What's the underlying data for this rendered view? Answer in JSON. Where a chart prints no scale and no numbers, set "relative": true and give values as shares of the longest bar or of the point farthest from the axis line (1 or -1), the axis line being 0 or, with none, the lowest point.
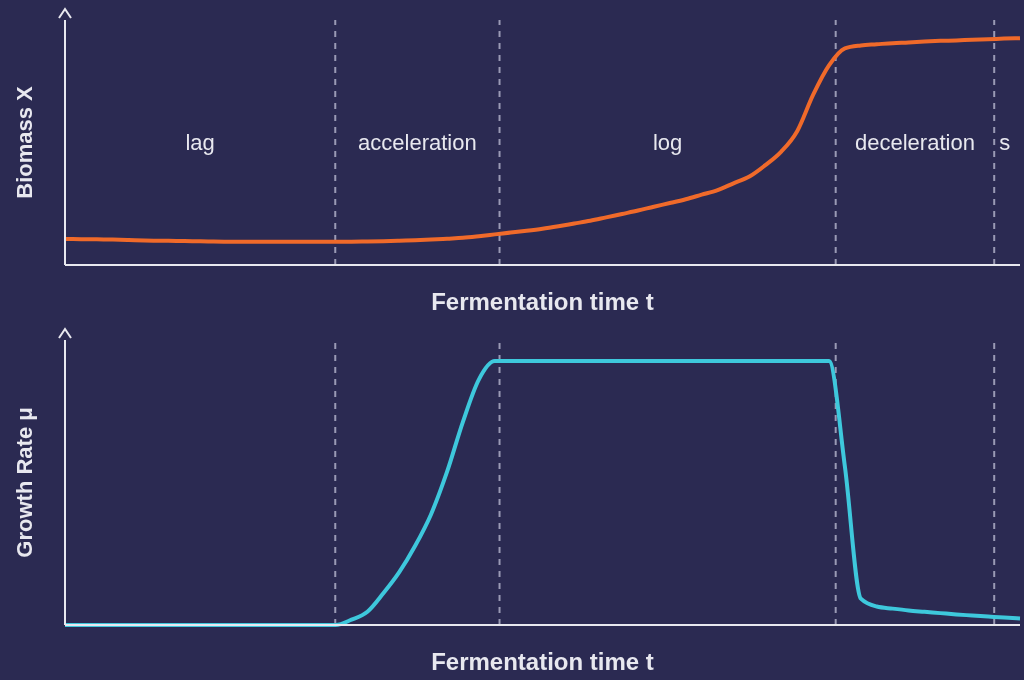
{
  "chart_data": [
    {
      "type": "line",
      "relative": true,
      "ylabel": "Biomass X",
      "xlabel": "Fermentation time t",
      "color": "#f06a2a",
      "categories": [
        null,
        null,
        null,
        null,
        null,
        null,
        null,
        null,
        null,
        null,
        null,
        null,
        null,
        null,
        null,
        null,
        null,
        null,
        null,
        null,
        null,
        null,
        null,
        null,
        null,
        null,
        null,
        null,
        null,
        null,
        null,
        null,
        null,
        null,
        null,
        null,
        null,
        null,
        null,
        null,
        null,
        null,
        null,
        null,
        null,
        null,
        null,
        null,
        null,
        null,
        null,
        null,
        null,
        null,
        null,
        null,
        null,
        null,
        null,
        null,
        null
      ],
      "values": [
        0.115,
        0.114,
        0.113,
        0.112,
        0.11,
        0.108,
        0.107,
        0.106,
        0.105,
        0.104,
        0.103,
        0.103,
        0.103,
        0.103,
        0.103,
        0.103,
        0.103,
        0.103,
        0.103,
        0.104,
        0.105,
        0.107,
        0.109,
        0.112,
        0.116,
        0.12,
        0.127,
        0.135,
        0.143,
        0.151,
        0.16,
        0.171,
        0.183,
        0.195,
        0.21,
        0.225,
        0.24,
        0.257,
        0.273,
        0.29,
        0.31,
        0.33,
        0.36,
        0.39,
        0.44,
        0.5,
        0.59,
        0.75,
        0.88,
        0.955,
        0.968,
        0.973,
        0.978,
        0.981,
        0.985,
        0.988,
        0.99,
        0.993,
        0.995,
        0.998,
        1.0
      ],
      "annotations": [
        "lag",
        "acceleration",
        "log",
        "deceleration",
        "s"
      ]
    },
    {
      "type": "line",
      "relative": true,
      "ylabel": "Growth Rate μ",
      "xlabel": "Fermentation time t",
      "color": "#3ec8dc",
      "categories": [
        null,
        null,
        null,
        null,
        null,
        null,
        null,
        null,
        null,
        null,
        null,
        null,
        null,
        null,
        null,
        null,
        null,
        null,
        null,
        null,
        null,
        null,
        null,
        null,
        null,
        null,
        null,
        null,
        null,
        null,
        null,
        null,
        null,
        null,
        null,
        null,
        null,
        null,
        null,
        null,
        null,
        null,
        null,
        null,
        null,
        null,
        null,
        null,
        null,
        null,
        null,
        null,
        null,
        null,
        null,
        null,
        null,
        null,
        null,
        null,
        null
      ],
      "values": [
        0,
        0,
        0,
        0,
        0,
        0,
        0,
        0,
        0,
        0,
        0,
        0,
        0,
        0,
        0,
        0,
        0,
        0,
        0.02,
        0.05,
        0.12,
        0.2,
        0.3,
        0.42,
        0.58,
        0.77,
        0.93,
        1.0,
        1.0,
        1.0,
        1.0,
        1.0,
        1.0,
        1.0,
        1.0,
        1.0,
        1.0,
        1.0,
        1.0,
        1.0,
        1.0,
        1.0,
        1.0,
        1.0,
        1.0,
        1.0,
        1.0,
        1.0,
        1.0,
        0.6,
        0.1,
        0.07,
        0.062,
        0.055,
        0.05,
        0.045,
        0.04,
        0.036,
        0.032,
        0.028,
        0.025
      ]
    }
  ]
}
